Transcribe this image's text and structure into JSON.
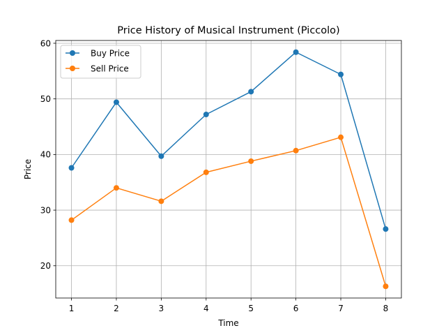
{
  "chart_data": {
    "type": "line",
    "title": "Price History of Musical Instrument (Piccolo)",
    "xlabel": "Time",
    "ylabel": "Price",
    "x": [
      1,
      2,
      3,
      4,
      5,
      6,
      7,
      8
    ],
    "xticks": [
      1,
      2,
      3,
      4,
      5,
      6,
      7,
      8
    ],
    "yticks": [
      20,
      30,
      40,
      50,
      60
    ],
    "xlim": [
      0.65,
      8.35
    ],
    "ylim": [
      14.2,
      60.5
    ],
    "grid": true,
    "legend_position": "top-left",
    "series": [
      {
        "name": "Buy Price",
        "color": "#1f77b4",
        "marker": "circle",
        "values": [
          37.6,
          49.4,
          39.7,
          47.2,
          51.3,
          58.4,
          54.4,
          26.6
        ]
      },
      {
        "name": "Sell Price",
        "color": "#ff7f0e",
        "marker": "circle",
        "values": [
          28.2,
          34.0,
          31.6,
          36.8,
          38.8,
          40.7,
          43.1,
          16.3
        ]
      }
    ]
  }
}
